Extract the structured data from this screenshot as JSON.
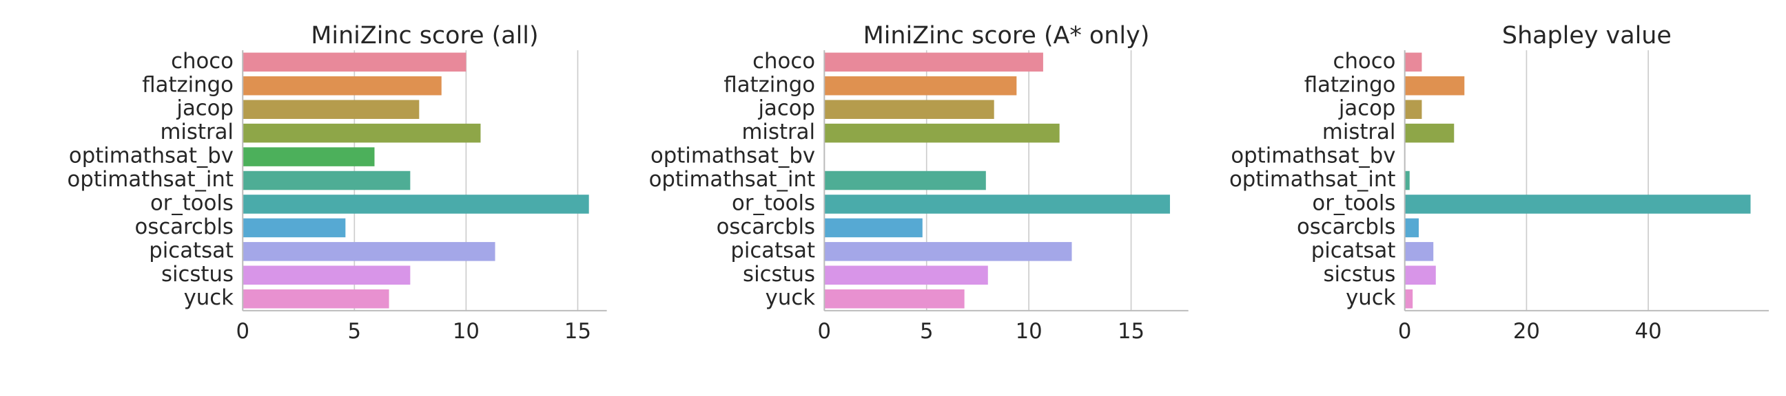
{
  "chart_data": [
    {
      "type": "barh",
      "title": "MiniZinc score (all)",
      "categories": [
        "choco",
        "flatzingo",
        "jacop",
        "mistral",
        "optimathsat_bv",
        "optimathsat_int",
        "or_tools",
        "oscarcbls",
        "picatsat",
        "sicstus",
        "yuck"
      ],
      "values": [
        10.0,
        8.9,
        7.9,
        10.65,
        5.9,
        7.5,
        15.5,
        4.6,
        11.3,
        7.5,
        6.55
      ],
      "colors": [
        "#e8899a",
        "#df9150",
        "#b59c4d",
        "#8ea648",
        "#4cb05b",
        "#4ead95",
        "#4aabaa",
        "#56a9d3",
        "#a4a7e8",
        "#d895e8",
        "#e891d0"
      ],
      "xlim": [
        0,
        16.3
      ],
      "xticks": [
        0,
        5,
        10,
        15
      ],
      "grid": true
    },
    {
      "type": "barh",
      "title": "MiniZinc score (A* only)",
      "categories": [
        "choco",
        "flatzingo",
        "jacop",
        "mistral",
        "optimathsat_bv",
        "optimathsat_int",
        "or_tools",
        "oscarcbls",
        "picatsat",
        "sicstus",
        "yuck"
      ],
      "values": [
        10.7,
        9.4,
        8.3,
        11.5,
        0,
        7.9,
        16.9,
        4.8,
        12.1,
        8.0,
        6.85
      ],
      "colors": [
        "#e8899a",
        "#df9150",
        "#b59c4d",
        "#8ea648",
        "#4cb05b",
        "#4ead95",
        "#4aabaa",
        "#56a9d3",
        "#a4a7e8",
        "#d895e8",
        "#e891d0"
      ],
      "xlim": [
        0,
        17.8
      ],
      "xticks": [
        0,
        5,
        10,
        15
      ],
      "grid": true
    },
    {
      "type": "barh",
      "title": "Shapley value",
      "categories": [
        "choco",
        "flatzingo",
        "jacop",
        "mistral",
        "optimathsat_bv",
        "optimathsat_int",
        "or_tools",
        "oscarcbls",
        "picatsat",
        "sicstus",
        "yuck"
      ],
      "values": [
        2.8,
        9.8,
        2.8,
        8.1,
        0,
        0.8,
        56.8,
        2.3,
        4.7,
        5.1,
        1.3
      ],
      "colors": [
        "#e8899a",
        "#df9150",
        "#b59c4d",
        "#8ea648",
        "#4cb05b",
        "#4ead95",
        "#4aabaa",
        "#56a9d3",
        "#a4a7e8",
        "#d895e8",
        "#e891d0"
      ],
      "xlim": [
        0,
        59.8
      ],
      "xticks": [
        0,
        20,
        40
      ],
      "grid": true
    }
  ]
}
